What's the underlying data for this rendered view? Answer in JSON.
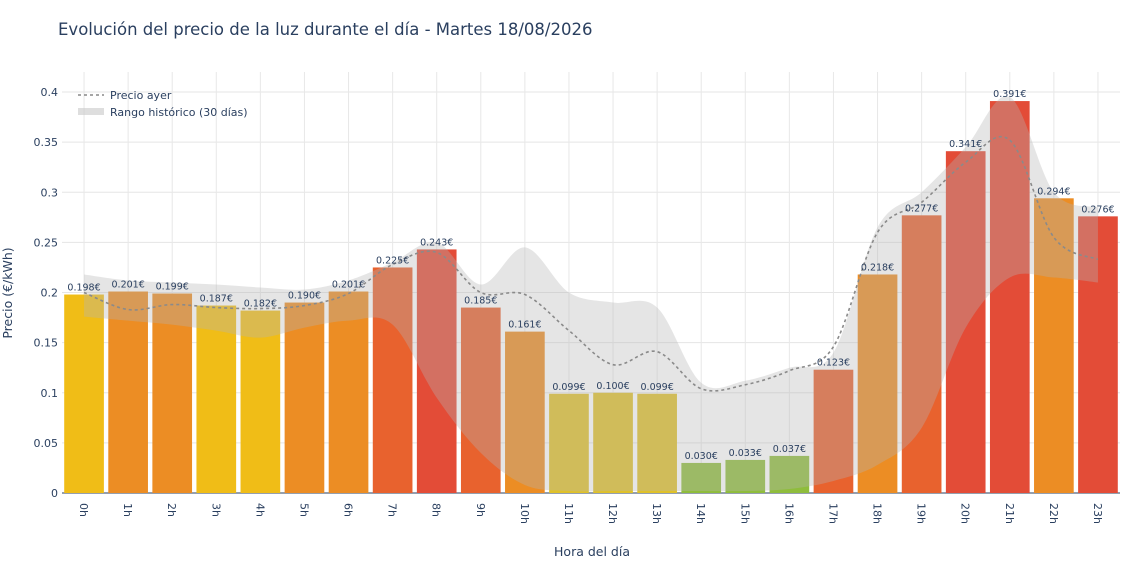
{
  "chart_data": {
    "type": "bar",
    "title": "Evolución del precio de la luz durante el día - Martes 18/08/2026",
    "xlabel": "Hora del día",
    "ylabel": "Precio (€/kWh)",
    "ylim": [
      0,
      0.42
    ],
    "yticks": [
      {
        "v": 0,
        "label": "0"
      },
      {
        "v": 0.05,
        "label": "0.05"
      },
      {
        "v": 0.1,
        "label": "0.1"
      },
      {
        "v": 0.15,
        "label": "0.15"
      },
      {
        "v": 0.2,
        "label": "0.2"
      },
      {
        "v": 0.25,
        "label": "0.25"
      },
      {
        "v": 0.3,
        "label": "0.3"
      },
      {
        "v": 0.35,
        "label": "0.35"
      },
      {
        "v": 0.4,
        "label": "0.4"
      }
    ],
    "categories": [
      "0h",
      "1h",
      "2h",
      "3h",
      "4h",
      "5h",
      "6h",
      "7h",
      "8h",
      "9h",
      "10h",
      "11h",
      "12h",
      "13h",
      "14h",
      "15h",
      "16h",
      "17h",
      "18h",
      "19h",
      "20h",
      "21h",
      "22h",
      "23h"
    ],
    "values": [
      0.198,
      0.201,
      0.199,
      0.187,
      0.182,
      0.19,
      0.201,
      0.225,
      0.243,
      0.185,
      0.161,
      0.099,
      0.1,
      0.099,
      0.03,
      0.033,
      0.037,
      0.123,
      0.218,
      0.277,
      0.341,
      0.391,
      0.294,
      0.276
    ],
    "bar_labels": [
      "0.198€",
      "0.201€",
      "0.199€",
      "0.187€",
      "0.182€",
      "0.190€",
      "0.201€",
      "0.225€",
      "0.243€",
      "0.185€",
      "0.161€",
      "0.099€",
      "0.100€",
      "0.099€",
      "0.030€",
      "0.033€",
      "0.037€",
      "0.123€",
      "0.218€",
      "0.277€",
      "0.341€",
      "0.391€",
      "0.294€",
      "0.276€"
    ],
    "bar_colors": [
      "#f0bd17",
      "#ec8d24",
      "#ec8d24",
      "#f0bd17",
      "#f0bd17",
      "#ec8d24",
      "#ec8d24",
      "#e8622e",
      "#e34c37",
      "#e8622e",
      "#ec8d24",
      "#dfc12a",
      "#dfc12a",
      "#dfc12a",
      "#8fbd3c",
      "#8fbd3c",
      "#8fbd3c",
      "#e8622e",
      "#ec8d24",
      "#e8622e",
      "#e34c37",
      "#e34c37",
      "#ec8d24",
      "#e34c37"
    ],
    "series_yesterday": {
      "name": "Precio ayer",
      "values": [
        0.2,
        0.183,
        0.188,
        0.185,
        0.184,
        0.187,
        0.199,
        0.228,
        0.24,
        0.2,
        0.198,
        0.162,
        0.128,
        0.141,
        0.104,
        0.108,
        0.122,
        0.146,
        0.26,
        0.29,
        0.33,
        0.352,
        0.255,
        0.233
      ]
    },
    "range_band": {
      "name": "Rango histórico (30 días)",
      "upper": [
        0.218,
        0.212,
        0.21,
        0.208,
        0.205,
        0.203,
        0.212,
        0.23,
        0.25,
        0.208,
        0.245,
        0.2,
        0.19,
        0.185,
        0.11,
        0.112,
        0.125,
        0.14,
        0.265,
        0.3,
        0.345,
        0.395,
        0.3,
        0.285
      ],
      "lower": [
        0.176,
        0.172,
        0.168,
        0.162,
        0.155,
        0.165,
        0.172,
        0.168,
        0.095,
        0.04,
        0.008,
        0.002,
        0.002,
        0.002,
        0.002,
        0.002,
        0.004,
        0.012,
        0.028,
        0.065,
        0.165,
        0.215,
        0.215,
        0.21
      ]
    },
    "legend_position": "top-left",
    "grid": true
  }
}
